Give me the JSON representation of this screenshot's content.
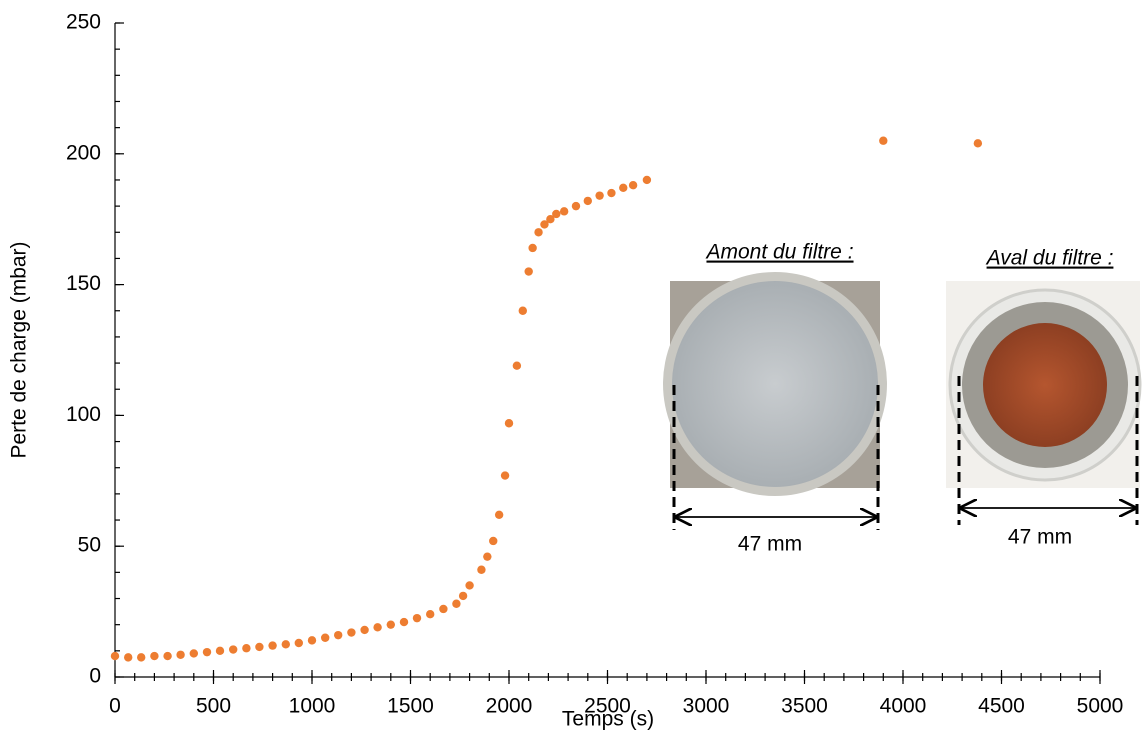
{
  "chart_data": {
    "type": "scatter",
    "x_label": "Temps (s)",
    "y_label": "Perte de charge (mbar)",
    "xlim": [
      0,
      5000
    ],
    "xticks": [
      0,
      500,
      1000,
      1500,
      2000,
      2500,
      3000,
      3500,
      4000,
      4500,
      5000
    ],
    "ylim": [
      0,
      250
    ],
    "yticks": [
      0,
      50,
      100,
      150,
      200,
      250
    ],
    "minor_tick_step": {
      "x": 100,
      "y": 10
    },
    "grid": false,
    "series": [
      {
        "name": "Perte de charge",
        "color": "#ed7d31",
        "x": [
          0,
          67,
          133,
          200,
          267,
          333,
          400,
          467,
          533,
          600,
          667,
          733,
          800,
          867,
          933,
          1000,
          1067,
          1133,
          1200,
          1267,
          1333,
          1400,
          1467,
          1533,
          1600,
          1667,
          1733,
          1767,
          1800,
          1860,
          1890,
          1920,
          1950,
          1980,
          2000,
          2040,
          2070,
          2100,
          2120,
          2150,
          2180,
          2210,
          2240,
          2280,
          2340,
          2400,
          2460,
          2520,
          2580,
          2630,
          2700,
          3900,
          4380
        ],
        "values": [
          8,
          7.5,
          7.5,
          8,
          8,
          8.5,
          9,
          9.5,
          10,
          10.5,
          11,
          11.5,
          12,
          12.5,
          13,
          14,
          15,
          16,
          17,
          18,
          19,
          20,
          21,
          22.5,
          24,
          26,
          28,
          31,
          35,
          41,
          46,
          52,
          62,
          77,
          97,
          119,
          140,
          155,
          164,
          170,
          173,
          175,
          177,
          178,
          180,
          182,
          184,
          185,
          187,
          188,
          190,
          205,
          204
        ]
      }
    ],
    "annotations": {
      "left_caption": "Amont du filtre :",
      "right_caption": "Aval du filtre :",
      "left_size": "47 mm",
      "right_size": "47 mm"
    }
  }
}
